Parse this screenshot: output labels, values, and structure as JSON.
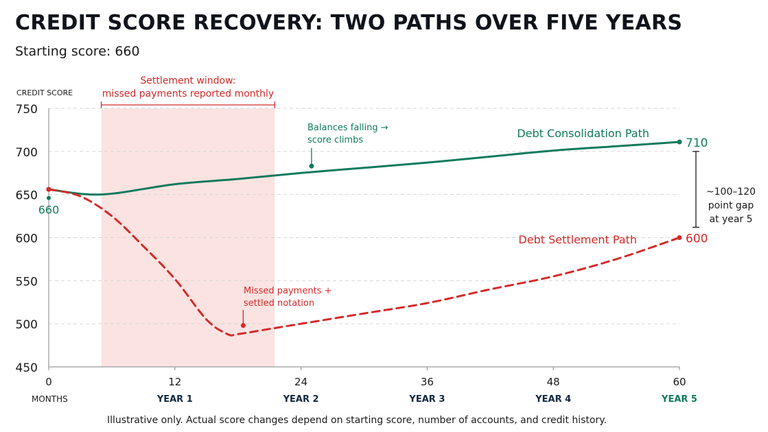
{
  "chart_data": {
    "type": "line",
    "title": "CREDIT SCORE RECOVERY: TWO PATHS OVER FIVE YEARS",
    "subtitle": "Starting score: 660",
    "ylabel": "CREDIT SCORE",
    "xlabel": "MONTHS",
    "ylim": [
      450,
      750
    ],
    "xlim": [
      0,
      60
    ],
    "yticks": [
      750,
      700,
      650,
      600,
      550,
      500,
      450
    ],
    "xticks": [
      0,
      12,
      24,
      36,
      48,
      60
    ],
    "year_labels": [
      {
        "x": 12,
        "label": "YEAR 1"
      },
      {
        "x": 24,
        "label": "YEAR 2"
      },
      {
        "x": 36,
        "label": "YEAR 3"
      },
      {
        "x": 48,
        "label": "YEAR 4"
      },
      {
        "x": 60,
        "label": "YEAR 5"
      }
    ],
    "grid": true,
    "series": [
      {
        "name": "Debt Consolidation Path",
        "color": "#0f7a5c",
        "style": "solid",
        "x": [
          0,
          5,
          12,
          18,
          24,
          30,
          36,
          42,
          48,
          54,
          60
        ],
        "y": [
          656,
          650,
          662,
          668,
          675,
          681,
          687,
          694,
          701,
          706,
          711
        ],
        "end_label": "710",
        "start_label": "660"
      },
      {
        "name": "Debt Settlement Path",
        "color": "#d42a2a",
        "style": "dashed",
        "x": [
          0,
          3,
          6,
          9,
          12,
          15,
          17,
          18,
          21,
          24,
          30,
          36,
          42,
          48,
          54,
          60
        ],
        "y": [
          656,
          648,
          625,
          590,
          552,
          505,
          488,
          488,
          494,
          500,
          512,
          524,
          540,
          555,
          575,
          600
        ],
        "end_label": "600"
      }
    ],
    "shaded_region": {
      "x": [
        5,
        21.5
      ],
      "label_line1": "Settlement window:",
      "label_line2": "missed payments reported monthly",
      "color": "#fbe3e1"
    },
    "annotations": [
      {
        "id": "consolidation",
        "x": 25,
        "y": 683,
        "line1": "Balances falling →",
        "line2": "score climbs",
        "color": "#0f7a5c"
      },
      {
        "id": "settlement",
        "x": 18.5,
        "y": 498,
        "line1": "Missed payments +",
        "line2": "settled notation",
        "color": "#d42a2a"
      }
    ],
    "gap_bracket": {
      "y_top": 700,
      "y_bottom": 612,
      "line1": "~100–120",
      "line2": "point gap",
      "line3": "at year 5"
    },
    "footnote": "Illustrative only. Actual score changes depend on starting score, number of accounts, and credit history."
  }
}
